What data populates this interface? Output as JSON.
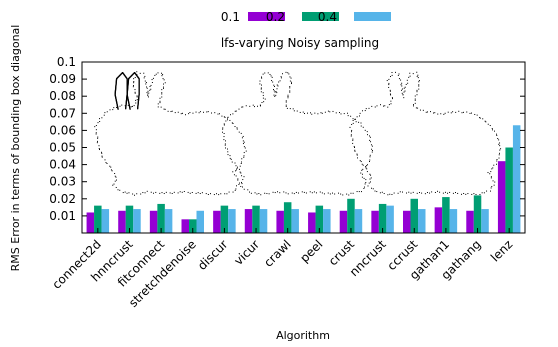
{
  "chart_data": {
    "type": "bar",
    "title": "",
    "subtitle": "lfs-varying Noisy sampling",
    "xlabel": "Algorithm",
    "ylabel": "RMS Error in terms of bounding box diagonal",
    "ylim": [
      0,
      0.1
    ],
    "yticks": [
      "0.01",
      "0.02",
      "0.03",
      "0.04",
      "0.05",
      "0.06",
      "0.07",
      "0.08",
      "0.09",
      "0.1"
    ],
    "legend_position": "top",
    "grid": false,
    "categories": [
      "connect2d",
      "hnncrust",
      "fitconnect",
      "stretchdenoise",
      "discur",
      "vicur",
      "crawl",
      "peel",
      "crust",
      "nncrust",
      "ccrust",
      "gathan1",
      "gathang",
      "lenz"
    ],
    "series": [
      {
        "name": "0.1",
        "color": "#9400d3",
        "values": [
          0.012,
          0.013,
          0.013,
          0.008,
          0.013,
          0.014,
          0.013,
          0.012,
          0.013,
          0.013,
          0.013,
          0.015,
          0.013,
          0.042
        ]
      },
      {
        "name": "0.2",
        "color": "#009e73",
        "values": [
          0.016,
          0.016,
          0.017,
          0.008,
          0.016,
          0.016,
          0.018,
          0.016,
          0.02,
          0.017,
          0.02,
          0.021,
          0.022,
          0.05
        ]
      },
      {
        "name": "0.4",
        "color": "#56b4e9",
        "values": [
          0.014,
          0.014,
          0.014,
          0.013,
          0.014,
          0.014,
          0.014,
          0.014,
          0.014,
          0.016,
          0.014,
          0.014,
          0.014,
          0.063
        ]
      }
    ]
  }
}
